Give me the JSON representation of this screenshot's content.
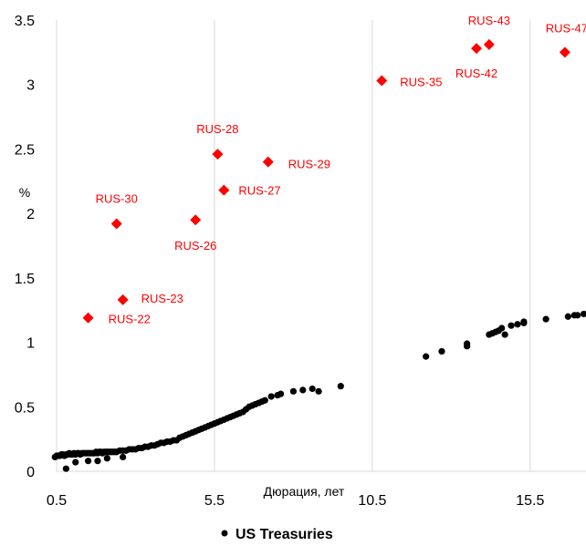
{
  "chart_data": {
    "type": "scatter",
    "title": "",
    "xlabel": "Дюрация, лет",
    "ylabel": "%",
    "xlim": [
      0.5,
      17.5
    ],
    "ylim": [
      0,
      3.5
    ],
    "x_ticks": [
      "0.5",
      "5.5",
      "10.5",
      "15.5"
    ],
    "x_tick_values": [
      0.5,
      5.5,
      10.5,
      15.5
    ],
    "y_ticks": [
      "0",
      "0.5",
      "1",
      "1.5",
      "2",
      "2.5",
      "3",
      "3.5"
    ],
    "y_tick_values": [
      0,
      0.5,
      1,
      1.5,
      2,
      2.5,
      3,
      3.5
    ],
    "grid": "vertical",
    "legend_position": "bottom",
    "series": [
      {
        "name": "",
        "color": "#ff0000",
        "marker": "diamond",
        "points": [
          {
            "x": 1.5,
            "y": 1.19,
            "label": "RUS-22"
          },
          {
            "x": 2.6,
            "y": 1.33,
            "label": "RUS-23"
          },
          {
            "x": 2.4,
            "y": 1.92,
            "label": "RUS-30"
          },
          {
            "x": 4.9,
            "y": 1.95,
            "label": "RUS-26"
          },
          {
            "x": 5.8,
            "y": 2.18,
            "label": "RUS-27"
          },
          {
            "x": 5.6,
            "y": 2.46,
            "label": "RUS-28"
          },
          {
            "x": 7.2,
            "y": 2.4,
            "label": "RUS-29"
          },
          {
            "x": 10.8,
            "y": 3.03,
            "label": "RUS-35"
          },
          {
            "x": 13.8,
            "y": 3.28,
            "label": "RUS-42"
          },
          {
            "x": 14.2,
            "y": 3.31,
            "label": "RUS-43"
          },
          {
            "x": 16.6,
            "y": 3.25,
            "label": "RUS-47"
          }
        ]
      },
      {
        "name": "US Treasuries",
        "color": "#000000",
        "marker": "circle",
        "points": [
          [
            0.45,
            0.11
          ],
          [
            0.5,
            0.12
          ],
          [
            0.55,
            0.12
          ],
          [
            0.6,
            0.12
          ],
          [
            0.65,
            0.13
          ],
          [
            0.7,
            0.13
          ],
          [
            0.75,
            0.12
          ],
          [
            0.8,
            0.13
          ],
          [
            0.85,
            0.13
          ],
          [
            0.9,
            0.14
          ],
          [
            0.95,
            0.13
          ],
          [
            1.0,
            0.13
          ],
          [
            1.05,
            0.14
          ],
          [
            1.1,
            0.13
          ],
          [
            1.15,
            0.14
          ],
          [
            1.2,
            0.14
          ],
          [
            1.25,
            0.13
          ],
          [
            1.3,
            0.14
          ],
          [
            1.35,
            0.14
          ],
          [
            1.4,
            0.14
          ],
          [
            1.45,
            0.14
          ],
          [
            1.5,
            0.14
          ],
          [
            1.55,
            0.14
          ],
          [
            1.6,
            0.14
          ],
          [
            1.65,
            0.14
          ],
          [
            1.7,
            0.14
          ],
          [
            1.75,
            0.15
          ],
          [
            1.8,
            0.14
          ],
          [
            1.85,
            0.15
          ],
          [
            1.9,
            0.15
          ],
          [
            1.95,
            0.14
          ],
          [
            2.0,
            0.15
          ],
          [
            2.05,
            0.15
          ],
          [
            2.1,
            0.15
          ],
          [
            2.15,
            0.15
          ],
          [
            2.2,
            0.15
          ],
          [
            2.25,
            0.15
          ],
          [
            2.3,
            0.15
          ],
          [
            2.35,
            0.15
          ],
          [
            2.4,
            0.15
          ],
          [
            2.5,
            0.16
          ],
          [
            2.6,
            0.16
          ],
          [
            2.7,
            0.16
          ],
          [
            2.8,
            0.17
          ],
          [
            2.9,
            0.17
          ],
          [
            3.0,
            0.17
          ],
          [
            3.1,
            0.18
          ],
          [
            3.2,
            0.18
          ],
          [
            3.3,
            0.19
          ],
          [
            3.4,
            0.19
          ],
          [
            3.5,
            0.2
          ],
          [
            3.6,
            0.2
          ],
          [
            3.7,
            0.21
          ],
          [
            3.8,
            0.22
          ],
          [
            3.9,
            0.22
          ],
          [
            4.0,
            0.23
          ],
          [
            4.1,
            0.23
          ],
          [
            4.2,
            0.24
          ],
          [
            4.3,
            0.24
          ],
          [
            4.4,
            0.26
          ],
          [
            4.5,
            0.27
          ],
          [
            4.6,
            0.28
          ],
          [
            4.7,
            0.29
          ],
          [
            4.8,
            0.3
          ],
          [
            4.9,
            0.31
          ],
          [
            5.0,
            0.32
          ],
          [
            5.1,
            0.33
          ],
          [
            5.2,
            0.34
          ],
          [
            5.3,
            0.35
          ],
          [
            5.4,
            0.36
          ],
          [
            5.5,
            0.37
          ],
          [
            5.6,
            0.38
          ],
          [
            5.7,
            0.39
          ],
          [
            5.8,
            0.4
          ],
          [
            5.9,
            0.41
          ],
          [
            6.0,
            0.42
          ],
          [
            6.1,
            0.43
          ],
          [
            6.2,
            0.44
          ],
          [
            6.3,
            0.45
          ],
          [
            6.4,
            0.46
          ],
          [
            6.5,
            0.48
          ],
          [
            6.6,
            0.5
          ],
          [
            6.7,
            0.51
          ],
          [
            6.8,
            0.52
          ],
          [
            6.9,
            0.53
          ],
          [
            7.0,
            0.54
          ],
          [
            7.1,
            0.55
          ],
          [
            7.3,
            0.58
          ],
          [
            7.5,
            0.59
          ],
          [
            7.6,
            0.6
          ],
          [
            8.0,
            0.62
          ],
          [
            8.3,
            0.63
          ],
          [
            8.6,
            0.64
          ],
          [
            8.8,
            0.62
          ],
          [
            9.5,
            0.66
          ],
          [
            0.8,
            0.02
          ],
          [
            1.1,
            0.07
          ],
          [
            1.5,
            0.08
          ],
          [
            1.8,
            0.08
          ],
          [
            2.1,
            0.1
          ],
          [
            2.6,
            0.11
          ],
          [
            12.2,
            0.89
          ],
          [
            12.7,
            0.93
          ],
          [
            13.5,
            0.97
          ],
          [
            13.5,
            0.99
          ],
          [
            14.2,
            1.06
          ],
          [
            14.4,
            1.08
          ],
          [
            14.5,
            1.09
          ],
          [
            14.6,
            1.11
          ],
          [
            14.7,
            1.06
          ],
          [
            14.9,
            1.13
          ],
          [
            15.1,
            1.14
          ],
          [
            15.3,
            1.15
          ],
          [
            15.3,
            1.16
          ],
          [
            16.0,
            1.18
          ],
          [
            16.7,
            1.2
          ],
          [
            16.9,
            1.21
          ],
          [
            17.0,
            1.21
          ],
          [
            17.2,
            1.22
          ],
          [
            14.3,
            1.07
          ]
        ]
      }
    ]
  }
}
